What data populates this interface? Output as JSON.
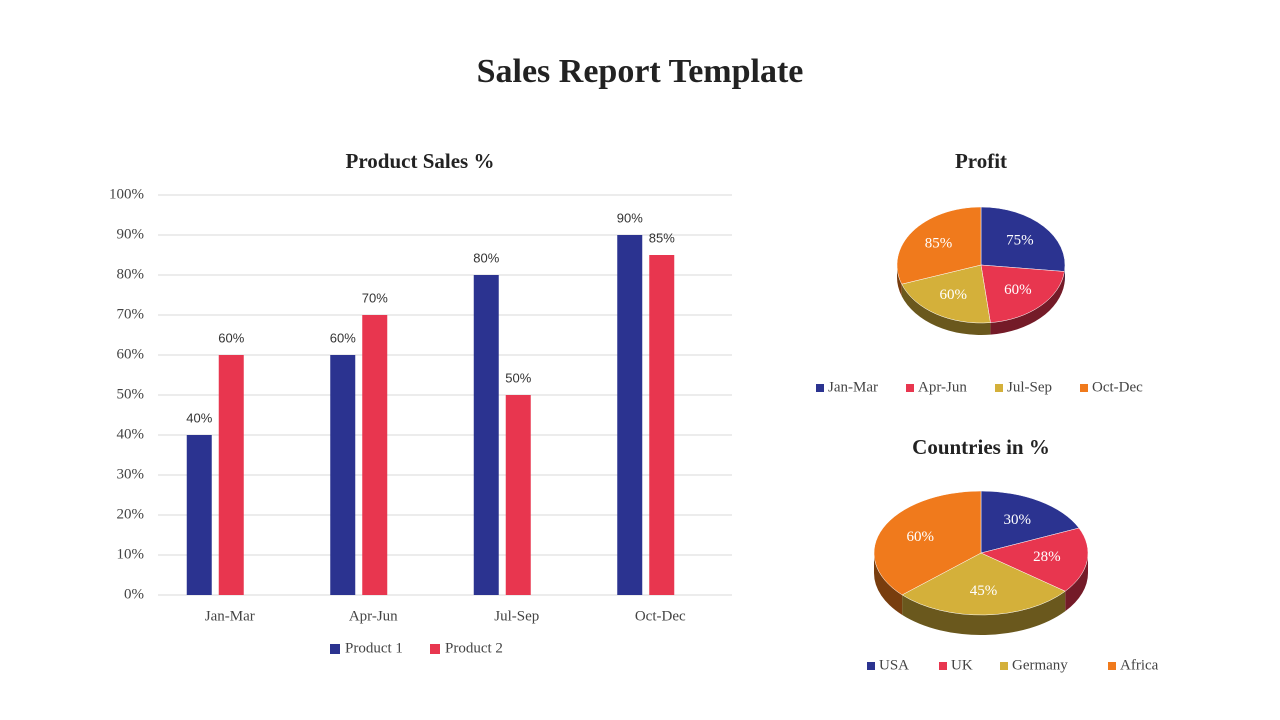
{
  "header": {
    "title": "Sales Report Template"
  },
  "chart_data": [
    {
      "type": "bar",
      "title": "Product Sales %",
      "categories": [
        "Jan-Mar",
        "Apr-Jun",
        "Jul-Sep",
        "Oct-Dec"
      ],
      "series": [
        {
          "name": "Product 1",
          "color": "#2b3390",
          "values": [
            40,
            60,
            80,
            90
          ],
          "value_labels": [
            "40%",
            "60%",
            "80%",
            "90%"
          ]
        },
        {
          "name": "Product 2",
          "color": "#e8364f",
          "values": [
            60,
            70,
            50,
            85
          ],
          "value_labels": [
            "60%",
            "70%",
            "50%",
            "85%"
          ]
        }
      ],
      "ylim": [
        0,
        100
      ],
      "yticks": [
        {
          "value": 0,
          "label": "0%"
        },
        {
          "value": 10,
          "label": "10%"
        },
        {
          "value": 20,
          "label": "20%"
        },
        {
          "value": 30,
          "label": "30%"
        },
        {
          "value": 40,
          "label": "40%"
        },
        {
          "value": 50,
          "label": "50%"
        },
        {
          "value": 60,
          "label": "60%"
        },
        {
          "value": 70,
          "label": "70%"
        },
        {
          "value": 80,
          "label": "80%"
        },
        {
          "value": 90,
          "label": "90%"
        },
        {
          "value": 100,
          "label": "100%"
        }
      ],
      "grid": true,
      "legend": "bottom"
    },
    {
      "type": "pie",
      "title": "Profit",
      "categories": [
        "Jan-Mar",
        "Apr-Jun",
        "Jul-Sep",
        "Oct-Dec"
      ],
      "values": [
        75,
        60,
        60,
        85
      ],
      "value_labels": [
        "75%",
        "60%",
        "60%",
        "85%"
      ],
      "colors": [
        "#2b3390",
        "#e8364f",
        "#d4b03a",
        "#f07a1c"
      ],
      "legend": "bottom"
    },
    {
      "type": "pie",
      "title": "Countries in %",
      "categories": [
        "USA",
        "UK",
        "Germany",
        "Africa"
      ],
      "values": [
        30,
        28,
        45,
        60
      ],
      "value_labels": [
        "30%",
        "28%",
        "45%",
        "60%"
      ],
      "colors": [
        "#2b3390",
        "#e8364f",
        "#d4b03a",
        "#f07a1c"
      ],
      "legend": "bottom"
    }
  ]
}
